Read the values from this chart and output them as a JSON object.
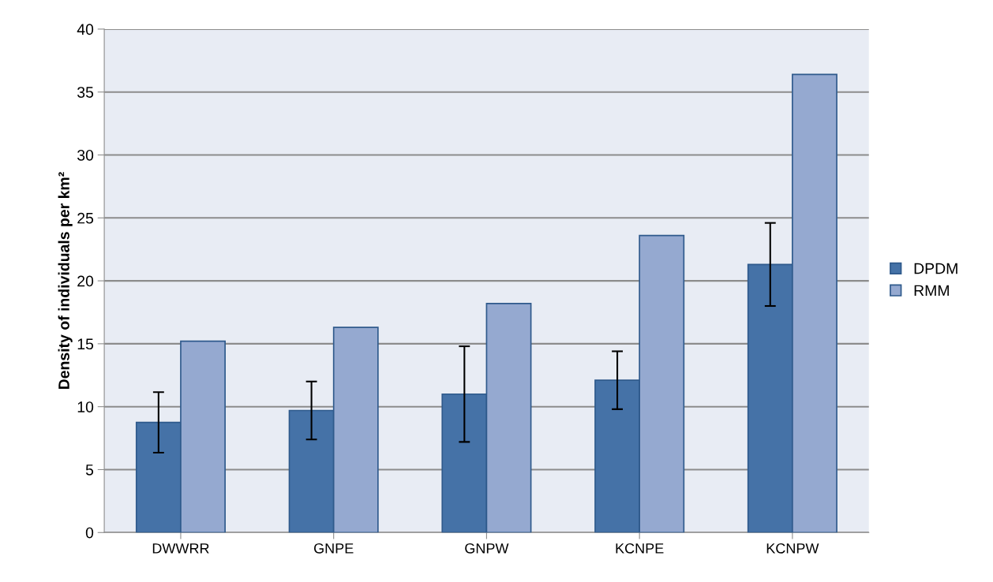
{
  "chart_data": {
    "type": "bar",
    "ylabel": "Density of individuals per km²",
    "categories": [
      "DWWRR",
      "GNPE",
      "GNPW",
      "KCNPE",
      "KCNPW"
    ],
    "series": [
      {
        "name": "DPDM",
        "color": "#4572a7",
        "values": [
          8.75,
          9.7,
          11.0,
          12.1,
          21.3
        ],
        "errors": [
          2.4,
          2.3,
          3.8,
          2.3,
          3.3
        ]
      },
      {
        "name": "RMM",
        "color": "#95a9d0",
        "values": [
          15.2,
          16.3,
          18.2,
          23.6,
          36.4
        ]
      }
    ],
    "ylim": [
      0,
      40
    ],
    "yticks": [
      0,
      5,
      10,
      15,
      20,
      25,
      30,
      35,
      40
    ],
    "grid": "y",
    "legend": "right"
  }
}
